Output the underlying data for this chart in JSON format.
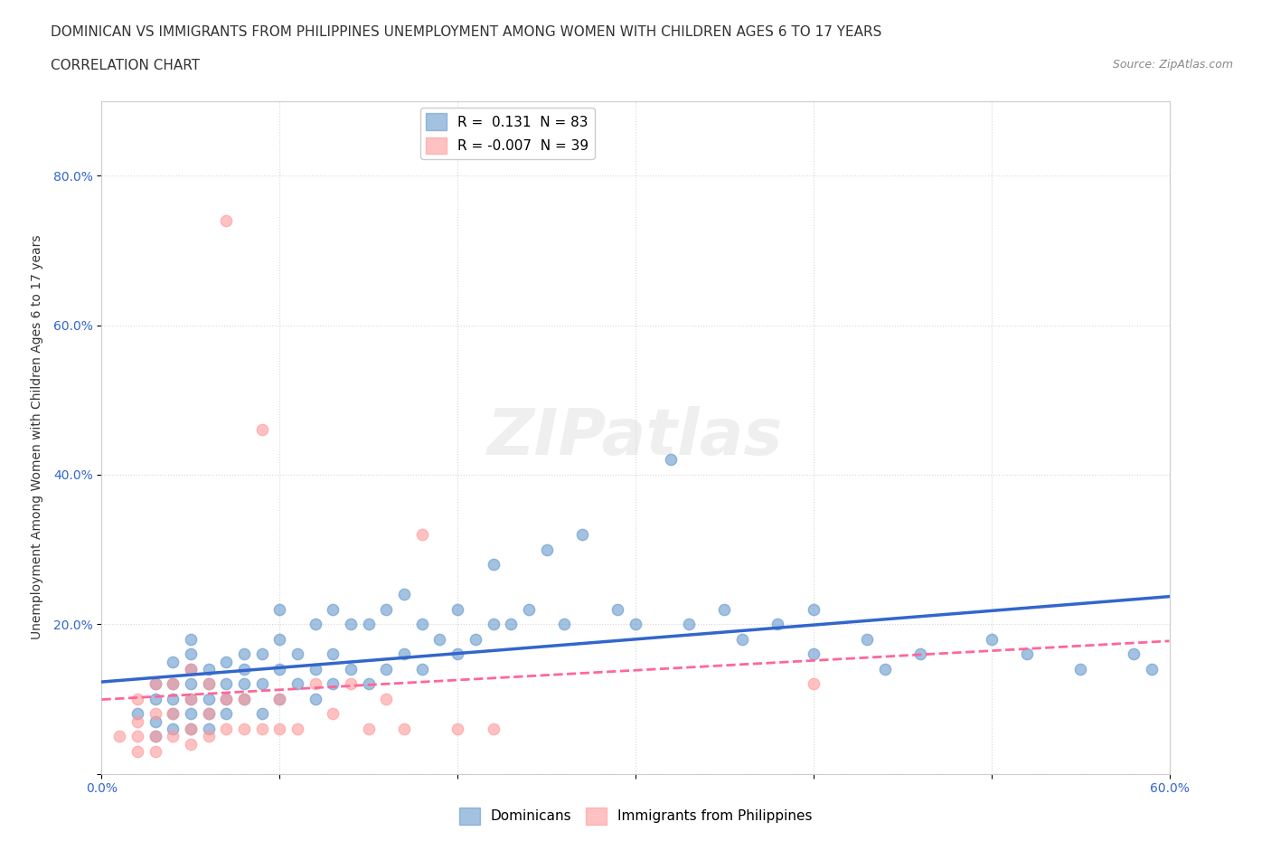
{
  "title_line1": "DOMINICAN VS IMMIGRANTS FROM PHILIPPINES UNEMPLOYMENT AMONG WOMEN WITH CHILDREN AGES 6 TO 17 YEARS",
  "title_line2": "CORRELATION CHART",
  "source_text": "Source: ZipAtlas.com",
  "xlabel": "",
  "ylabel": "Unemployment Among Women with Children Ages 6 to 17 years",
  "xlim": [
    0.0,
    0.6
  ],
  "ylim": [
    0.0,
    0.9
  ],
  "xticks": [
    0.0,
    0.1,
    0.2,
    0.3,
    0.4,
    0.5,
    0.6
  ],
  "xticklabels": [
    "0.0%",
    "",
    "",
    "",
    "",
    "",
    "60.0%"
  ],
  "yticks": [
    0.0,
    0.2,
    0.4,
    0.6,
    0.8
  ],
  "yticklabels": [
    "",
    "20.0%",
    "40.0%",
    "60.0%",
    "80.0%"
  ],
  "dominican_color": "#6699CC",
  "philippines_color": "#FF9999",
  "trend_dominican_color": "#3366CC",
  "trend_philippines_color": "#FF6699",
  "trend_philippines_dash": "dashed",
  "legend_r_dominican": "0.131",
  "legend_n_dominican": "83",
  "legend_r_philippines": "-0.007",
  "legend_n_philippines": "39",
  "watermark": "ZIPatlas",
  "background_color": "#FFFFFF",
  "grid_color": "#CCCCCC",
  "dominican_x": [
    0.02,
    0.03,
    0.03,
    0.03,
    0.03,
    0.04,
    0.04,
    0.04,
    0.04,
    0.04,
    0.05,
    0.05,
    0.05,
    0.05,
    0.05,
    0.05,
    0.05,
    0.06,
    0.06,
    0.06,
    0.06,
    0.06,
    0.07,
    0.07,
    0.07,
    0.07,
    0.08,
    0.08,
    0.08,
    0.08,
    0.09,
    0.09,
    0.09,
    0.1,
    0.1,
    0.1,
    0.1,
    0.11,
    0.11,
    0.12,
    0.12,
    0.12,
    0.13,
    0.13,
    0.13,
    0.14,
    0.14,
    0.15,
    0.15,
    0.16,
    0.16,
    0.17,
    0.17,
    0.18,
    0.18,
    0.19,
    0.2,
    0.2,
    0.21,
    0.22,
    0.22,
    0.23,
    0.24,
    0.25,
    0.26,
    0.27,
    0.29,
    0.3,
    0.32,
    0.33,
    0.35,
    0.36,
    0.38,
    0.4,
    0.4,
    0.43,
    0.44,
    0.46,
    0.5,
    0.52,
    0.55,
    0.58,
    0.59
  ],
  "dominican_y": [
    0.08,
    0.05,
    0.07,
    0.1,
    0.12,
    0.06,
    0.08,
    0.1,
    0.12,
    0.15,
    0.06,
    0.08,
    0.1,
    0.12,
    0.14,
    0.16,
    0.18,
    0.06,
    0.08,
    0.1,
    0.12,
    0.14,
    0.08,
    0.1,
    0.12,
    0.15,
    0.1,
    0.12,
    0.14,
    0.16,
    0.08,
    0.12,
    0.16,
    0.1,
    0.14,
    0.18,
    0.22,
    0.12,
    0.16,
    0.1,
    0.14,
    0.2,
    0.12,
    0.16,
    0.22,
    0.14,
    0.2,
    0.12,
    0.2,
    0.14,
    0.22,
    0.16,
    0.24,
    0.14,
    0.2,
    0.18,
    0.16,
    0.22,
    0.18,
    0.2,
    0.28,
    0.2,
    0.22,
    0.3,
    0.2,
    0.32,
    0.22,
    0.2,
    0.42,
    0.2,
    0.22,
    0.18,
    0.2,
    0.16,
    0.22,
    0.18,
    0.14,
    0.16,
    0.18,
    0.16,
    0.14,
    0.16,
    0.14
  ],
  "philippines_x": [
    0.01,
    0.02,
    0.02,
    0.02,
    0.02,
    0.03,
    0.03,
    0.03,
    0.03,
    0.04,
    0.04,
    0.04,
    0.05,
    0.05,
    0.05,
    0.05,
    0.06,
    0.06,
    0.06,
    0.07,
    0.07,
    0.07,
    0.08,
    0.08,
    0.09,
    0.09,
    0.1,
    0.1,
    0.11,
    0.12,
    0.13,
    0.14,
    0.15,
    0.16,
    0.17,
    0.18,
    0.2,
    0.22,
    0.4
  ],
  "philippines_y": [
    0.05,
    0.03,
    0.05,
    0.07,
    0.1,
    0.03,
    0.05,
    0.08,
    0.12,
    0.05,
    0.08,
    0.12,
    0.04,
    0.06,
    0.1,
    0.14,
    0.05,
    0.08,
    0.12,
    0.06,
    0.1,
    0.74,
    0.06,
    0.1,
    0.06,
    0.46,
    0.06,
    0.1,
    0.06,
    0.12,
    0.08,
    0.12,
    0.06,
    0.1,
    0.06,
    0.32,
    0.06,
    0.06,
    0.12
  ]
}
